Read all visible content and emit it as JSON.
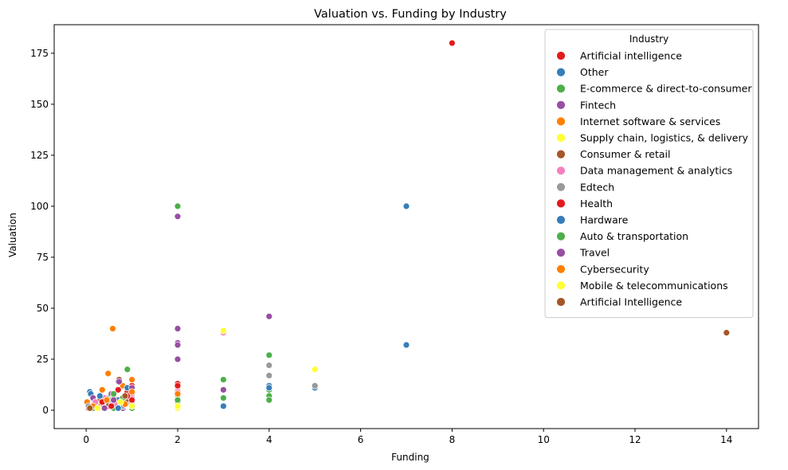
{
  "chart_data": {
    "type": "scatter",
    "title": "Valuation vs. Funding by Industry",
    "xlabel": "Funding",
    "ylabel": "Valuation",
    "xlim": [
      -0.7,
      14.7
    ],
    "ylim": [
      -9,
      189
    ],
    "xticks": [
      0,
      2,
      4,
      6,
      8,
      10,
      12,
      14
    ],
    "yticks": [
      0,
      25,
      50,
      75,
      100,
      125,
      150,
      175
    ],
    "grid": false,
    "legend": {
      "title": "Industry",
      "placement": "top-right"
    },
    "series": [
      {
        "name": "Artificial intelligence",
        "color": "#e41a1c",
        "points": [
          [
            8,
            180
          ],
          [
            0.3,
            7
          ],
          [
            0.6,
            4
          ],
          [
            1,
            12
          ],
          [
            2,
            13
          ],
          [
            0.5,
            2
          ],
          [
            0.9,
            9
          ]
        ]
      },
      {
        "name": "Other",
        "color": "#377eb8",
        "points": [
          [
            7,
            100
          ],
          [
            7,
            32
          ],
          [
            3,
            2
          ],
          [
            4,
            12
          ],
          [
            5,
            11
          ],
          [
            0.08,
            9
          ],
          [
            0.1,
            8
          ],
          [
            0.4,
            3
          ],
          [
            1,
            6
          ],
          [
            2,
            11
          ],
          [
            0.7,
            5
          ],
          [
            0.05,
            1
          ]
        ]
      },
      {
        "name": "E-commerce & direct-to-consumer",
        "color": "#4daf4a",
        "points": [
          [
            2,
            100
          ],
          [
            0.9,
            20
          ],
          [
            3,
            15
          ],
          [
            3,
            6
          ],
          [
            4,
            27
          ],
          [
            4,
            10
          ],
          [
            4,
            7
          ],
          [
            4,
            5
          ],
          [
            0.2,
            1
          ],
          [
            0.6,
            1
          ],
          [
            1,
            1
          ],
          [
            2,
            4
          ],
          [
            0.5,
            6
          ],
          [
            0.8,
            3
          ]
        ]
      },
      {
        "name": "Fintech",
        "color": "#984ea3",
        "points": [
          [
            2,
            95
          ],
          [
            2,
            40
          ],
          [
            2,
            33
          ],
          [
            2,
            32
          ],
          [
            2,
            25
          ],
          [
            4,
            46
          ],
          [
            3,
            10
          ],
          [
            0.15,
            6
          ],
          [
            0.7,
            14
          ],
          [
            0.8,
            1
          ],
          [
            1,
            10
          ],
          [
            0.35,
            3
          ],
          [
            0.55,
            8
          ]
        ]
      },
      {
        "name": "Internet software & services",
        "color": "#ff7f00",
        "points": [
          [
            0.58,
            40
          ],
          [
            0.48,
            18
          ],
          [
            1,
            15
          ],
          [
            0.35,
            10
          ],
          [
            0.8,
            12
          ],
          [
            0.02,
            4
          ],
          [
            0.6,
            7
          ],
          [
            2,
            10
          ],
          [
            0.9,
            5
          ],
          [
            0.25,
            2
          ]
        ]
      },
      {
        "name": "Supply chain, logistics, & delivery",
        "color": "#ffff33",
        "points": [
          [
            5,
            20
          ],
          [
            2,
            1
          ],
          [
            0.2,
            2
          ],
          [
            0.7,
            2
          ],
          [
            1,
            3
          ],
          [
            0.4,
            1
          ]
        ]
      },
      {
        "name": "Consumer & retail",
        "color": "#a65628",
        "points": [
          [
            0.72,
            15
          ],
          [
            0.05,
            1
          ],
          [
            0.3,
            5
          ],
          [
            0.9,
            4
          ],
          [
            2,
            6
          ],
          [
            0.5,
            3
          ]
        ]
      },
      {
        "name": "Data management & analytics",
        "color": "#f781bf",
        "points": [
          [
            3,
            38
          ],
          [
            0.4,
            6
          ],
          [
            1,
            8
          ],
          [
            0.65,
            3
          ],
          [
            0.2,
            4
          ],
          [
            2,
            9
          ]
        ]
      },
      {
        "name": "Edtech",
        "color": "#999999",
        "points": [
          [
            4,
            22
          ],
          [
            4,
            17
          ],
          [
            5,
            12
          ],
          [
            0.05,
            2
          ],
          [
            2,
            7
          ],
          [
            1,
            4
          ],
          [
            0.5,
            5
          ],
          [
            0.8,
            2
          ]
        ]
      },
      {
        "name": "Health",
        "color": "#e41a1c",
        "points": [
          [
            0.7,
            10
          ],
          [
            0.9,
            7
          ],
          [
            1,
            5
          ],
          [
            2,
            12
          ],
          [
            0.35,
            4
          ],
          [
            0.55,
            2
          ]
        ]
      },
      {
        "name": "Hardware",
        "color": "#377eb8",
        "points": [
          [
            0.3,
            7
          ],
          [
            0.7,
            1
          ],
          [
            1,
            2
          ],
          [
            4,
            11
          ],
          [
            0.9,
            11
          ]
        ]
      },
      {
        "name": "Auto & transportation",
        "color": "#4daf4a",
        "points": [
          [
            2,
            5
          ],
          [
            0.6,
            8
          ],
          [
            1,
            1
          ],
          [
            0.15,
            1
          ],
          [
            0.8,
            6
          ]
        ]
      },
      {
        "name": "Travel",
        "color": "#984ea3",
        "points": [
          [
            0.72,
            14
          ],
          [
            0.4,
            1
          ],
          [
            1,
            11
          ],
          [
            0.6,
            5
          ]
        ]
      },
      {
        "name": "Cybersecurity",
        "color": "#ff7f00",
        "points": [
          [
            0.85,
            3
          ],
          [
            1,
            9
          ],
          [
            0.45,
            5
          ],
          [
            2,
            8
          ],
          [
            0.15,
            2
          ]
        ]
      },
      {
        "name": "Mobile & telecommunications",
        "color": "#ffff33",
        "points": [
          [
            3,
            39
          ],
          [
            0.25,
            1
          ],
          [
            0.75,
            4
          ],
          [
            1,
            2
          ],
          [
            2,
            2
          ]
        ]
      },
      {
        "name": "Artificial Intelligence",
        "color": "#a65628",
        "points": [
          [
            14,
            38
          ],
          [
            0.08,
            1
          ],
          [
            0.85,
            7
          ]
        ]
      }
    ]
  }
}
